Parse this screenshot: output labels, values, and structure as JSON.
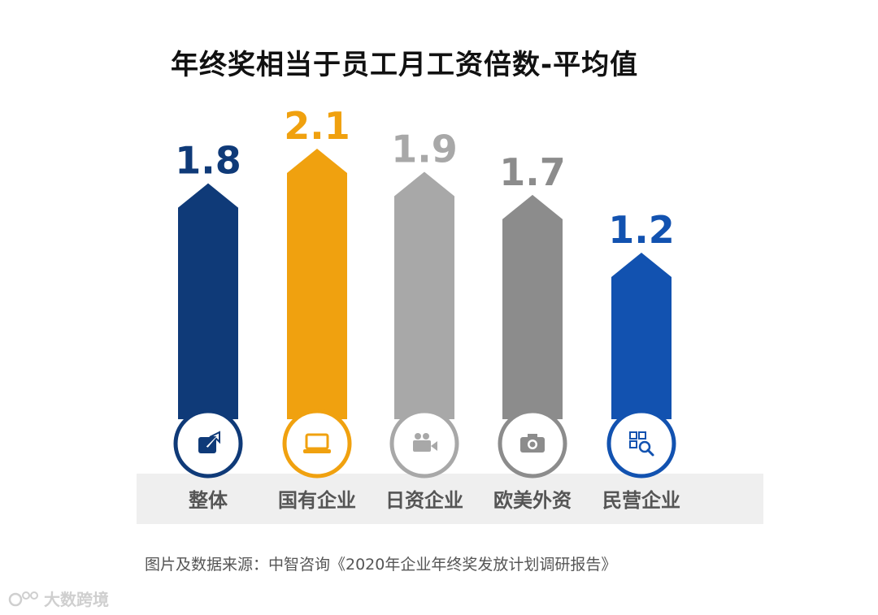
{
  "chart_data": {
    "type": "bar",
    "title": "年终奖相当于员工月工资倍数-平均值",
    "categories": [
      "整体",
      "国有企业",
      "日资企业",
      "欧美外资",
      "民营企业"
    ],
    "values": [
      1.8,
      2.1,
      1.9,
      1.7,
      1.2
    ],
    "colors": [
      "#0f3a78",
      "#f0a10f",
      "#a8a8a8",
      "#8c8c8c",
      "#1252b0"
    ],
    "icons": [
      "share-icon",
      "laptop-icon",
      "video-camera-icon",
      "camera-icon",
      "qr-search-icon"
    ],
    "ylim": [
      0,
      2.1
    ],
    "grid": false,
    "legend": "none"
  },
  "source": "图片及数据来源：中智咨询《2020年企业年终奖发放计划调研报告》",
  "watermark": "大数跨境"
}
